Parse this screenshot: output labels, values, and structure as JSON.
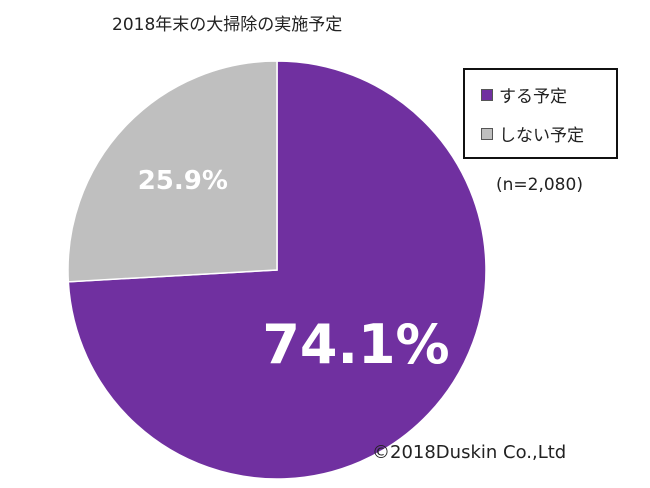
{
  "chart_data": {
    "type": "pie",
    "title": "2018年末の大掃除の実施予定",
    "sample_note": "(n=2,080)",
    "start_angle_deg": 0,
    "direction": "clockwise",
    "slices": [
      {
        "label": "する予定",
        "value": 74.1,
        "display": "74.1%",
        "color": "#7030a0"
      },
      {
        "label": "しない予定",
        "value": 25.9,
        "display": "25.9%",
        "color": "#bfbfbf"
      }
    ],
    "legend_position": "top-right"
  },
  "footer": {
    "copyright": "©2018Duskin Co.,Ltd"
  }
}
